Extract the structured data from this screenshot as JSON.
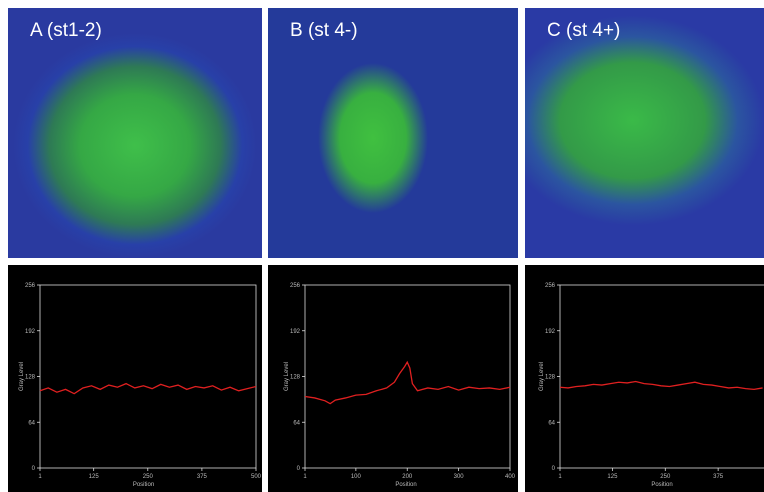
{
  "figure": {
    "panels": [
      {
        "label": "A (st1-2)"
      },
      {
        "label": "B (st 4-)"
      },
      {
        "label": "C (st 4+)"
      }
    ]
  },
  "chart_data": [
    {
      "type": "line",
      "xlabel": "Position",
      "ylabel": "Gray Level",
      "x": [
        1,
        20,
        40,
        60,
        80,
        100,
        120,
        140,
        160,
        180,
        200,
        220,
        240,
        260,
        280,
        300,
        320,
        340,
        360,
        380,
        400,
        420,
        440,
        460,
        480,
        500
      ],
      "series": [
        {
          "color": "#e02020",
          "values": [
            108,
            112,
            106,
            110,
            104,
            112,
            115,
            110,
            116,
            113,
            118,
            112,
            115,
            111,
            117,
            113,
            116,
            110,
            114,
            112,
            115,
            109,
            113,
            108,
            111,
            114
          ]
        }
      ],
      "xlim": [
        1,
        500
      ],
      "ylim": [
        0,
        256
      ],
      "xticks": [
        1,
        125,
        250,
        375,
        500
      ],
      "yticks": [
        0,
        64,
        128,
        192,
        256
      ]
    },
    {
      "type": "line",
      "xlabel": "Position",
      "ylabel": "Gray Level",
      "x": [
        1,
        20,
        40,
        50,
        60,
        80,
        100,
        120,
        140,
        160,
        175,
        185,
        195,
        200,
        205,
        210,
        220,
        240,
        260,
        280,
        300,
        320,
        340,
        360,
        380,
        400
      ],
      "series": [
        {
          "color": "#e02020",
          "values": [
            100,
            98,
            94,
            90,
            95,
            98,
            102,
            103,
            108,
            112,
            120,
            132,
            142,
            148,
            140,
            118,
            108,
            112,
            110,
            114,
            109,
            113,
            111,
            112,
            110,
            113
          ]
        }
      ],
      "xlim": [
        1,
        400
      ],
      "ylim": [
        0,
        256
      ],
      "xticks": [
        1,
        100,
        200,
        300,
        400
      ],
      "yticks": [
        0,
        64,
        128,
        192,
        256
      ]
    },
    {
      "type": "line",
      "xlabel": "Position",
      "ylabel": "Gray Level",
      "x": [
        1,
        20,
        40,
        60,
        80,
        100,
        120,
        140,
        160,
        180,
        200,
        220,
        240,
        260,
        280,
        300,
        320,
        340,
        360,
        380,
        400,
        420,
        440,
        460,
        480
      ],
      "series": [
        {
          "color": "#e02020",
          "values": [
            113,
            112,
            114,
            115,
            117,
            116,
            118,
            120,
            119,
            121,
            118,
            117,
            115,
            114,
            116,
            118,
            120,
            117,
            116,
            114,
            112,
            113,
            111,
            110,
            112
          ]
        }
      ],
      "xlim": [
        1,
        500
      ],
      "ylim": [
        0,
        256
      ],
      "xticks": [
        1,
        125,
        250,
        375
      ],
      "yticks": [
        0,
        64,
        128,
        192,
        256
      ]
    }
  ]
}
